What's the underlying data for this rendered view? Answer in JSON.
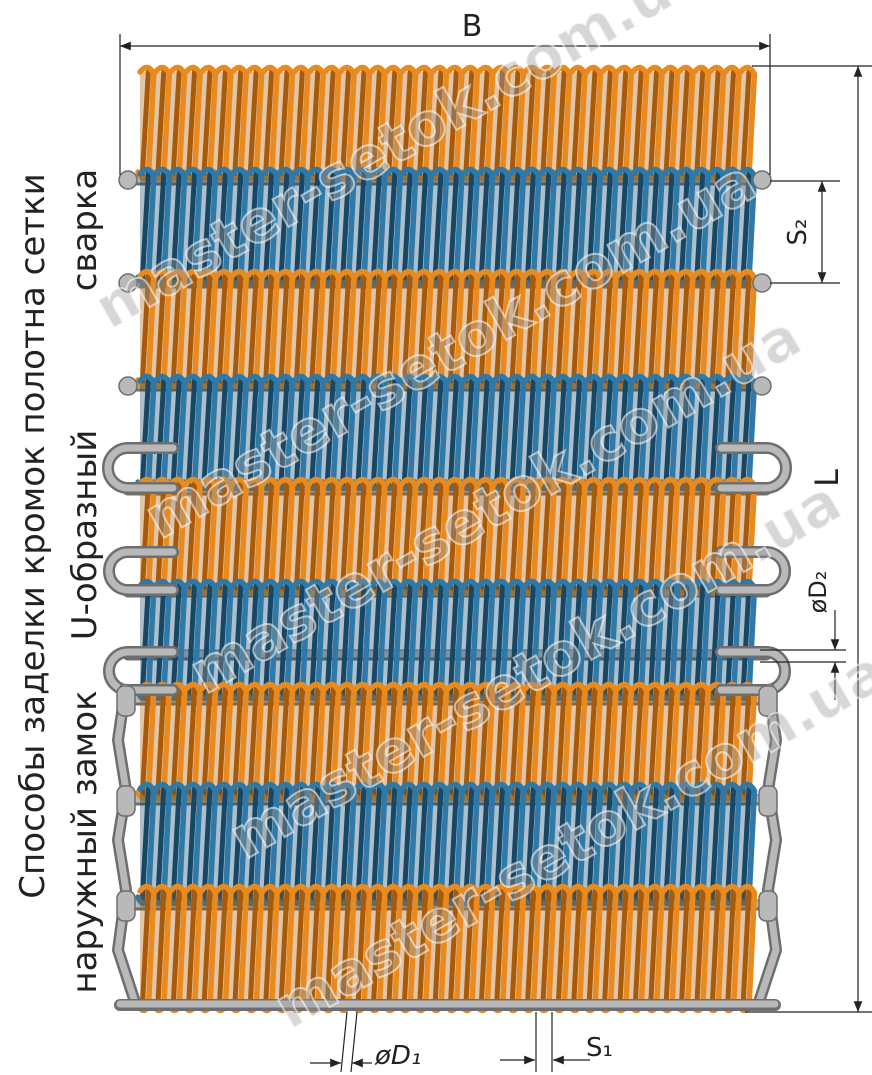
{
  "dimensions": {
    "width_label": "B",
    "length_label": "L",
    "spiral_pitch_label": "S₂",
    "rod_diameter_label": "øD₂",
    "wire_diameter_label": "øD₁",
    "wire_pitch_label": "S₁"
  },
  "side_labels": {
    "title": "Способы заделки кромок полотна сетки",
    "method_welding": "сварка",
    "method_u_shaped": "U-образный",
    "method_outer_lock": "наружный замок"
  },
  "watermark": "master-setok.com.ua",
  "colors": {
    "spiral_orange": "#E98A1E",
    "spiral_orange_dark": "#A85A08",
    "spiral_blue": "#2E79A8",
    "spiral_blue_dark": "#174766",
    "rod_gray": "#B9B9B9",
    "rod_gray_dark": "#6E6E6E",
    "dimension_line": "#222222"
  }
}
